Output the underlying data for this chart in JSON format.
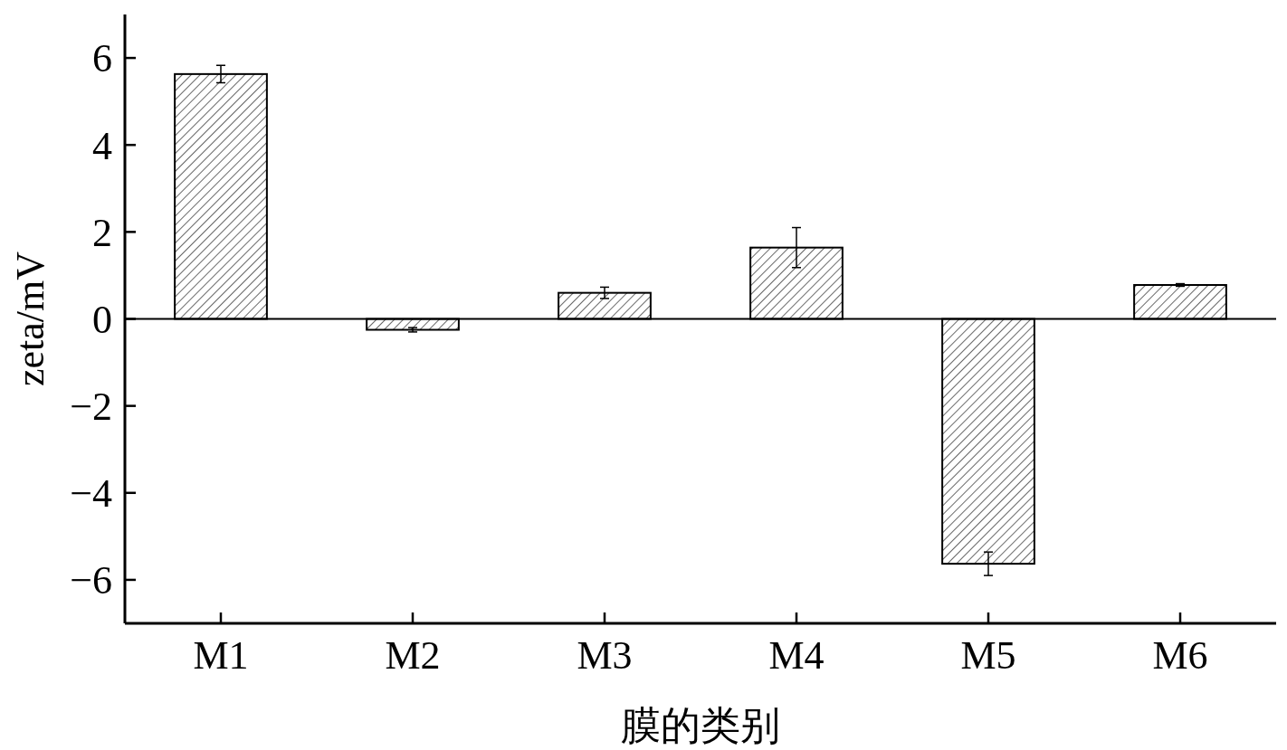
{
  "chart_data": {
    "type": "bar",
    "xlabel": "膜的类别",
    "ylabel": "zeta/mV",
    "categories": [
      "M1",
      "M2",
      "M3",
      "M4",
      "M5",
      "M6"
    ],
    "values": [
      5.63,
      -0.25,
      0.6,
      1.64,
      -5.63,
      0.78
    ],
    "errors": [
      0.2,
      0.05,
      0.13,
      0.46,
      0.27,
      0.03
    ],
    "color": "#000000",
    "ylim": [
      -7,
      7
    ],
    "yticks": [
      {
        "value": -6,
        "label": "−6"
      },
      {
        "value": -4,
        "label": "−4"
      },
      {
        "value": -2,
        "label": "−2"
      },
      0,
      2,
      4,
      6
    ]
  }
}
